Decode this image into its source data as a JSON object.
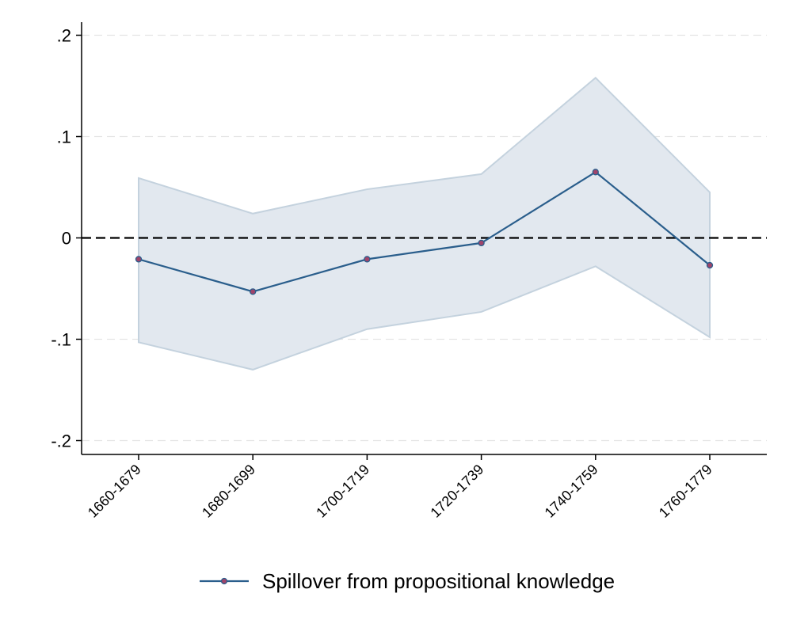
{
  "chart_data": {
    "type": "line",
    "categories": [
      "1660-1679",
      "1680-1699",
      "1700-1719",
      "1720-1739",
      "1740-1759",
      "1760-1779"
    ],
    "series": [
      {
        "name": "Spillover from propositional knowledge",
        "values": [
          -0.021,
          -0.053,
          -0.021,
          -0.005,
          0.065,
          -0.027
        ],
        "ci_upper": [
          0.059,
          0.024,
          0.048,
          0.063,
          0.158,
          0.045
        ],
        "ci_lower": [
          -0.103,
          -0.13,
          -0.09,
          -0.073,
          -0.028,
          -0.098
        ],
        "color": "#2a5e8c",
        "marker_fill": "#a0446a"
      }
    ],
    "ci_fill_color": "#e2e8ef",
    "ci_edge_color": "#c4d2de",
    "yticks": [
      0.2,
      0.1,
      0,
      -0.1,
      -0.2
    ],
    "ytick_labels": [
      ".2",
      ".1",
      "0",
      "-.1",
      "-.2"
    ],
    "ylim": [
      -0.215,
      0.215
    ],
    "reference_line": 0,
    "grid": true,
    "legend_position": "bottom"
  }
}
